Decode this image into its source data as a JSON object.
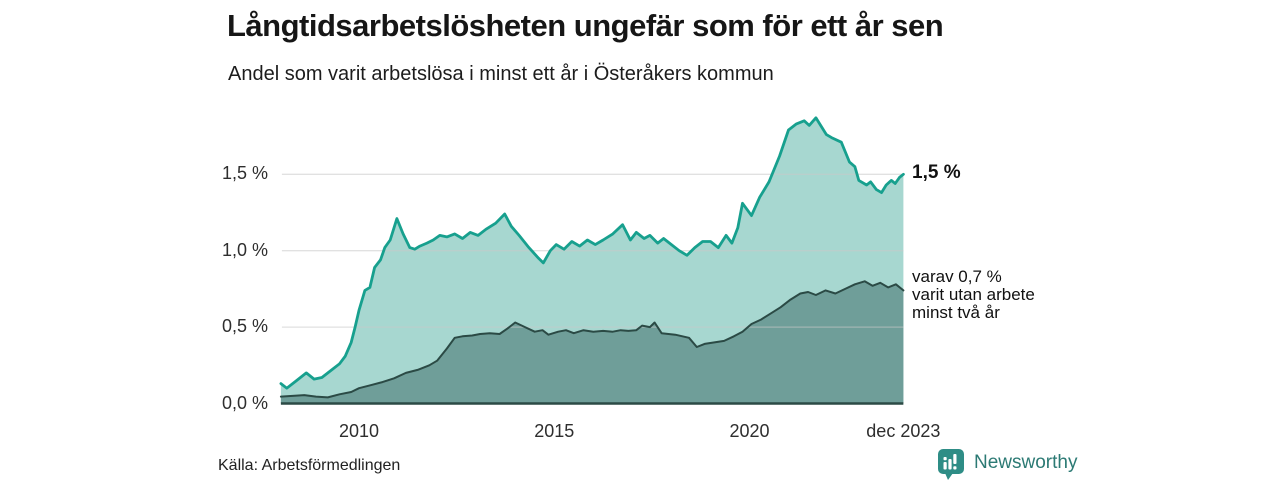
{
  "header": {
    "title": "Långtidsarbetslösheten ungefär som för ett år sen",
    "subtitle": "Andel som varit arbetslösa i minst ett år i Österåkers kommun"
  },
  "chart_data": {
    "type": "area",
    "title": "Långtidsarbetslösheten ungefär som för ett år sen",
    "subtitle": "Andel som varit arbetslösa i minst ett år i Österåkers kommun",
    "unit": "%",
    "grid": "horizontal",
    "x_range": [
      2008.0,
      2023.94
    ],
    "ylim": [
      0,
      1.95
    ],
    "y_axis": {
      "ticks": [
        {
          "value": 0.0,
          "label": "0,0 %"
        },
        {
          "value": 0.5,
          "label": "0,5 %"
        },
        {
          "value": 1.0,
          "label": "1,0 %"
        },
        {
          "value": 1.5,
          "label": "1,5 %"
        }
      ]
    },
    "x_axis": {
      "ticks": [
        {
          "value": 2010.0,
          "label": "2010"
        },
        {
          "value": 2015.0,
          "label": "2015"
        },
        {
          "value": 2020.0,
          "label": "2020"
        },
        {
          "value": 2023.94,
          "label": "dec 2023"
        }
      ]
    },
    "series": [
      {
        "name": "Andel som varit arbetslösa i minst ett år",
        "line_color": "#17a08e",
        "fill_color": "#a7d7d0",
        "end_label": "1,5 %",
        "end_value": 1.5,
        "points": [
          [
            2008.0,
            0.13
          ],
          [
            2008.15,
            0.1
          ],
          [
            2008.4,
            0.15
          ],
          [
            2008.65,
            0.2
          ],
          [
            2008.85,
            0.16
          ],
          [
            2009.05,
            0.17
          ],
          [
            2009.3,
            0.22
          ],
          [
            2009.5,
            0.26
          ],
          [
            2009.65,
            0.31
          ],
          [
            2009.8,
            0.4
          ],
          [
            2009.9,
            0.5
          ],
          [
            2010.0,
            0.61
          ],
          [
            2010.15,
            0.74
          ],
          [
            2010.28,
            0.76
          ],
          [
            2010.4,
            0.89
          ],
          [
            2010.55,
            0.94
          ],
          [
            2010.66,
            1.02
          ],
          [
            2010.8,
            1.07
          ],
          [
            2010.97,
            1.21
          ],
          [
            2011.13,
            1.11
          ],
          [
            2011.3,
            1.02
          ],
          [
            2011.43,
            1.01
          ],
          [
            2011.56,
            1.03
          ],
          [
            2011.74,
            1.05
          ],
          [
            2011.9,
            1.07
          ],
          [
            2012.07,
            1.1
          ],
          [
            2012.25,
            1.09
          ],
          [
            2012.45,
            1.11
          ],
          [
            2012.65,
            1.08
          ],
          [
            2012.85,
            1.12
          ],
          [
            2013.05,
            1.1
          ],
          [
            2013.25,
            1.14
          ],
          [
            2013.5,
            1.18
          ],
          [
            2013.73,
            1.24
          ],
          [
            2013.9,
            1.16
          ],
          [
            2014.1,
            1.1
          ],
          [
            2014.35,
            1.02
          ],
          [
            2014.6,
            0.95
          ],
          [
            2014.72,
            0.92
          ],
          [
            2014.9,
            1.0
          ],
          [
            2015.05,
            1.04
          ],
          [
            2015.25,
            1.01
          ],
          [
            2015.45,
            1.06
          ],
          [
            2015.65,
            1.03
          ],
          [
            2015.85,
            1.07
          ],
          [
            2016.05,
            1.04
          ],
          [
            2016.25,
            1.07
          ],
          [
            2016.5,
            1.11
          ],
          [
            2016.75,
            1.17
          ],
          [
            2016.95,
            1.07
          ],
          [
            2017.1,
            1.12
          ],
          [
            2017.3,
            1.08
          ],
          [
            2017.45,
            1.1
          ],
          [
            2017.65,
            1.05
          ],
          [
            2017.8,
            1.08
          ],
          [
            2018.0,
            1.04
          ],
          [
            2018.2,
            1.0
          ],
          [
            2018.4,
            0.97
          ],
          [
            2018.6,
            1.02
          ],
          [
            2018.8,
            1.06
          ],
          [
            2019.0,
            1.06
          ],
          [
            2019.2,
            1.02
          ],
          [
            2019.4,
            1.1
          ],
          [
            2019.55,
            1.05
          ],
          [
            2019.7,
            1.15
          ],
          [
            2019.82,
            1.31
          ],
          [
            2020.05,
            1.23
          ],
          [
            2020.26,
            1.35
          ],
          [
            2020.5,
            1.45
          ],
          [
            2020.77,
            1.62
          ],
          [
            2021.0,
            1.79
          ],
          [
            2021.2,
            1.83
          ],
          [
            2021.4,
            1.85
          ],
          [
            2021.53,
            1.82
          ],
          [
            2021.7,
            1.87
          ],
          [
            2021.97,
            1.76
          ],
          [
            2022.1,
            1.74
          ],
          [
            2022.35,
            1.71
          ],
          [
            2022.56,
            1.58
          ],
          [
            2022.7,
            1.55
          ],
          [
            2022.8,
            1.46
          ],
          [
            2023.0,
            1.43
          ],
          [
            2023.1,
            1.45
          ],
          [
            2023.25,
            1.4
          ],
          [
            2023.38,
            1.38
          ],
          [
            2023.5,
            1.43
          ],
          [
            2023.63,
            1.46
          ],
          [
            2023.73,
            1.44
          ],
          [
            2023.84,
            1.48
          ],
          [
            2023.94,
            1.5
          ]
        ]
      },
      {
        "name": "varav varit utan arbete minst två år",
        "line_color": "#2b4a45",
        "fill_color": "#6f9e99",
        "end_label_lines": [
          "varav 0,7 %",
          "varit utan arbete",
          "minst två år"
        ],
        "end_value": 0.7,
        "points": [
          [
            2008.0,
            0.045
          ],
          [
            2008.3,
            0.05
          ],
          [
            2008.6,
            0.055
          ],
          [
            2008.9,
            0.045
          ],
          [
            2009.2,
            0.04
          ],
          [
            2009.5,
            0.06
          ],
          [
            2009.8,
            0.075
          ],
          [
            2010.0,
            0.1
          ],
          [
            2010.3,
            0.12
          ],
          [
            2010.6,
            0.14
          ],
          [
            2010.9,
            0.165
          ],
          [
            2011.2,
            0.2
          ],
          [
            2011.5,
            0.22
          ],
          [
            2011.8,
            0.25
          ],
          [
            2012.0,
            0.28
          ],
          [
            2012.25,
            0.36
          ],
          [
            2012.45,
            0.43
          ],
          [
            2012.65,
            0.44
          ],
          [
            2012.9,
            0.445
          ],
          [
            2013.1,
            0.455
          ],
          [
            2013.35,
            0.46
          ],
          [
            2013.6,
            0.455
          ],
          [
            2013.8,
            0.49
          ],
          [
            2014.0,
            0.53
          ],
          [
            2014.25,
            0.5
          ],
          [
            2014.5,
            0.47
          ],
          [
            2014.7,
            0.48
          ],
          [
            2014.85,
            0.45
          ],
          [
            2015.1,
            0.47
          ],
          [
            2015.3,
            0.48
          ],
          [
            2015.5,
            0.46
          ],
          [
            2015.75,
            0.48
          ],
          [
            2016.0,
            0.47
          ],
          [
            2016.25,
            0.475
          ],
          [
            2016.5,
            0.47
          ],
          [
            2016.7,
            0.48
          ],
          [
            2016.9,
            0.475
          ],
          [
            2017.1,
            0.48
          ],
          [
            2017.25,
            0.51
          ],
          [
            2017.45,
            0.5
          ],
          [
            2017.57,
            0.53
          ],
          [
            2017.75,
            0.46
          ],
          [
            2018.1,
            0.45
          ],
          [
            2018.45,
            0.43
          ],
          [
            2018.65,
            0.37
          ],
          [
            2018.85,
            0.39
          ],
          [
            2019.1,
            0.4
          ],
          [
            2019.35,
            0.41
          ],
          [
            2019.6,
            0.44
          ],
          [
            2019.82,
            0.47
          ],
          [
            2020.05,
            0.52
          ],
          [
            2020.3,
            0.55
          ],
          [
            2020.55,
            0.59
          ],
          [
            2020.8,
            0.63
          ],
          [
            2021.05,
            0.68
          ],
          [
            2021.3,
            0.72
          ],
          [
            2021.5,
            0.73
          ],
          [
            2021.7,
            0.71
          ],
          [
            2021.95,
            0.74
          ],
          [
            2022.2,
            0.72
          ],
          [
            2022.45,
            0.75
          ],
          [
            2022.7,
            0.78
          ],
          [
            2022.95,
            0.8
          ],
          [
            2023.15,
            0.77
          ],
          [
            2023.35,
            0.79
          ],
          [
            2023.55,
            0.76
          ],
          [
            2023.75,
            0.78
          ],
          [
            2023.94,
            0.74
          ]
        ]
      }
    ]
  },
  "footer": {
    "source": "Källa: Arbetsförmedlingen",
    "brand_name": "Newsworthy"
  },
  "colors": {
    "accent_teal": "#17a08e",
    "light_fill": "#a7d7d0",
    "dark_fill": "#6f9e99",
    "dark_line": "#2b4a45",
    "gridline": "#c9c9c9",
    "brand_teal": "#2c7a74"
  }
}
